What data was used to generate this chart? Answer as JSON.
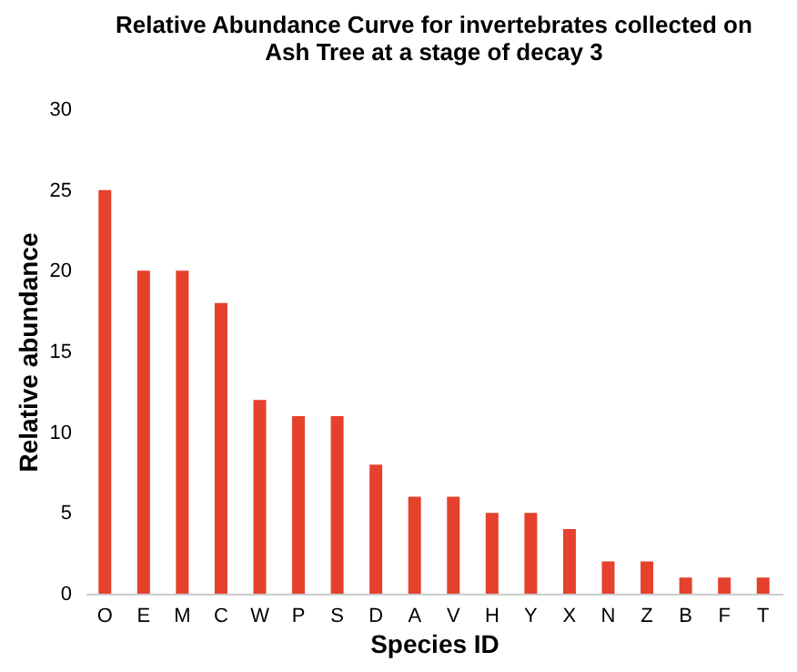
{
  "chart_data": {
    "type": "bar",
    "title": "Relative Abundance Curve for invertebrates collected on\nAsh Tree at a stage of decay 3",
    "xlabel": "Species ID",
    "ylabel": "Relative abundance",
    "categories": [
      "O",
      "E",
      "M",
      "C",
      "W",
      "P",
      "S",
      "D",
      "A",
      "V",
      "H",
      "Y",
      "X",
      "N",
      "Z",
      "B",
      "F",
      "T"
    ],
    "values": [
      25,
      20,
      20,
      18,
      12,
      11,
      11,
      8,
      6,
      6,
      5,
      5,
      4,
      2,
      2,
      1,
      1,
      1
    ],
    "color": "#e5412d",
    "ylim": [
      0,
      30
    ],
    "yticks": [
      0,
      5,
      10,
      15,
      20,
      25,
      30
    ],
    "grid": false
  }
}
